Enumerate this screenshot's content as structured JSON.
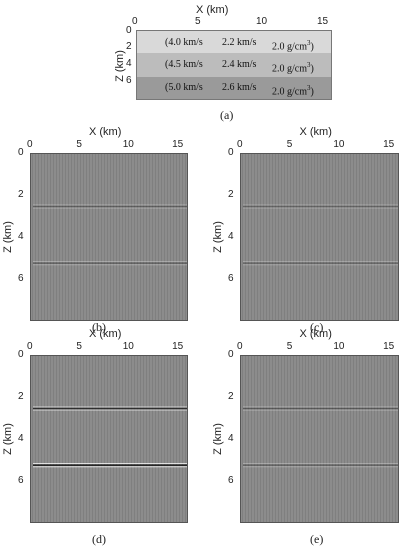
{
  "model": {
    "xlabel": "X (km)",
    "ylabel": "Z (km)",
    "x_ticks": [
      "0",
      "5",
      "10",
      "15"
    ],
    "y_ticks": [
      "0",
      "2",
      "4",
      "6"
    ],
    "caption": "(a)",
    "layers": [
      {
        "vp": "(4.0 km/s",
        "vs": "2.2 km/s",
        "rho": "2.0 g/cm",
        "sup": "3",
        "close": ")",
        "color": "#d9d9d9"
      },
      {
        "vp": "(4.5 km/s",
        "vs": "2.4 km/s",
        "rho": "2.0 g/cm",
        "sup": "3",
        "close": ")",
        "color": "#bcbcbc"
      },
      {
        "vp": "(5.0 km/s",
        "vs": "2.6 km/s",
        "rho": "2.0 g/cm",
        "sup": "3",
        "close": ")",
        "color": "#9a9a9a"
      }
    ]
  },
  "panels": [
    {
      "caption": "(b)",
      "xlabel": "X (km)",
      "ylabel": "Z (km)",
      "x_ticks": [
        "0",
        "5",
        "10",
        "15"
      ],
      "y_ticks": [
        "0",
        "2",
        "4",
        "6"
      ],
      "reflector_strength": [
        0.35,
        0.35
      ]
    },
    {
      "caption": "(c)",
      "xlabel": "X (km)",
      "ylabel": "Z (km)",
      "x_ticks": [
        "0",
        "5",
        "10",
        "15"
      ],
      "y_ticks": [
        "0",
        "2",
        "4",
        "6"
      ],
      "reflector_strength": [
        0.3,
        0.3
      ]
    },
    {
      "caption": "(d)",
      "xlabel": "X (km)",
      "ylabel": "Z (km)",
      "x_ticks": [
        "0",
        "5",
        "10",
        "15"
      ],
      "y_ticks": [
        "0",
        "2",
        "4",
        "6"
      ],
      "reflector_strength": [
        0.75,
        0.95
      ]
    },
    {
      "caption": "(e)",
      "xlabel": "X (km)",
      "ylabel": "Z (km)",
      "x_ticks": [
        "0",
        "5",
        "10",
        "15"
      ],
      "y_ticks": [
        "0",
        "2",
        "4",
        "6"
      ],
      "reflector_strength": [
        0.4,
        0.35
      ]
    }
  ],
  "image_data": {
    "x_range": [
      0,
      16
    ],
    "z_range": [
      0,
      8
    ],
    "reflector_depths_km": [
      2.5,
      5.2
    ],
    "colormap": "gray",
    "background": "#8a8a8a"
  }
}
